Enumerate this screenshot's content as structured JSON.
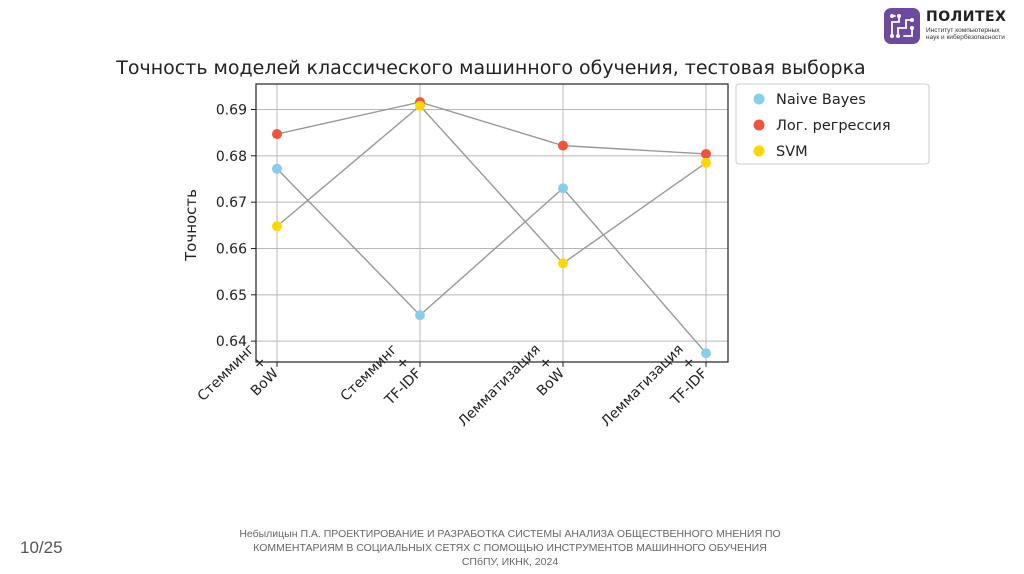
{
  "logo": {
    "title": "ПОЛИТЕХ",
    "subtitle_line1": "Институт компьютерных",
    "subtitle_line2": "наук и кибербезопасности"
  },
  "slide": {
    "page": "10/25",
    "footer_line1": "Небылицын П.А. ПРОЕКТИРОВАНИЕ И РАЗРАБОТКА СИСТЕМЫ АНАЛИЗА ОБЩЕСТВЕННОГО МНЕНИЯ ПО",
    "footer_line2": "КОММЕНТАРИЯМ В СОЦИАЛЬНЫХ СЕТЯХ С ПОМОЩЬЮ ИНСТРУМЕНТОВ МАШИННОГО ОБУЧЕНИЯ",
    "footer_line3": "СПбПУ, ИКНК, 2024"
  },
  "chart_data": {
    "type": "scatter",
    "title": "Точность моделей классического машинного обучения, тестовая выборка",
    "xlabel": "",
    "ylabel": "Точность",
    "categories": [
      [
        "Стемминг",
        "+",
        "BoW"
      ],
      [
        "Стемминг",
        "+",
        "TF-IDF"
      ],
      [
        "Лемматизация",
        "+",
        "BoW"
      ],
      [
        "Лемматизация",
        "+",
        "TF-IDF"
      ]
    ],
    "ylim": [
      0.6355,
      0.6955
    ],
    "yticks": [
      0.64,
      0.65,
      0.66,
      0.67,
      0.68,
      0.69
    ],
    "ytick_labels": [
      "0.64",
      "0.65",
      "0.66",
      "0.67",
      "0.68",
      "0.69"
    ],
    "grid": true,
    "legend_position": "outside-right-top",
    "connector_color": "#999999",
    "series": [
      {
        "name": "Naive Bayes",
        "color": "#87ceeb",
        "values": [
          0.6772,
          0.6456,
          0.673,
          0.6374
        ]
      },
      {
        "name": "Лог. регрессия",
        "color": "#f0553c",
        "values": [
          0.6847,
          0.6916,
          0.6822,
          0.6804
        ]
      },
      {
        "name": "SVM",
        "color": "#ffd700",
        "values": [
          0.6648,
          0.6908,
          0.6568,
          0.6785
        ]
      }
    ]
  }
}
